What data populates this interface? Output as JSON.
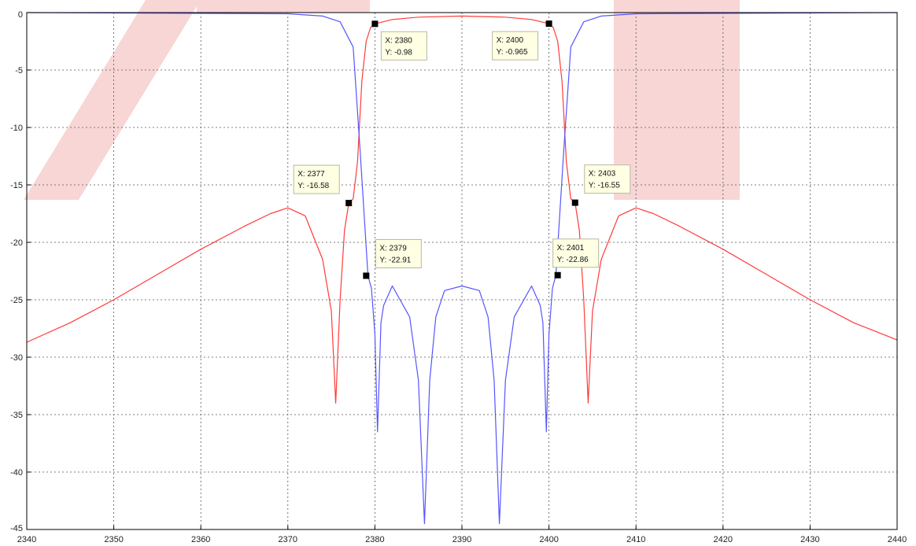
{
  "chart_data": {
    "type": "line",
    "title": "",
    "xlabel": "",
    "ylabel": "",
    "xlim": [
      2340,
      2440
    ],
    "ylim": [
      -45,
      0
    ],
    "grid": true,
    "grid_style": "dotted",
    "x_ticks": [
      2340,
      2350,
      2360,
      2370,
      2380,
      2390,
      2400,
      2410,
      2420,
      2430,
      2440
    ],
    "x_tick_labels": [
      "2340",
      "2350",
      "2360",
      "2370",
      "2380",
      "2390",
      "2400",
      "2410",
      "2420",
      "2430",
      "2440"
    ],
    "y_ticks": [
      0,
      -5,
      -10,
      -15,
      -20,
      -25,
      -30,
      -35,
      -40,
      -45
    ],
    "y_tick_labels": [
      "0",
      "-5",
      "-10",
      "-15",
      "-20",
      "-25",
      "-30",
      "-35",
      "-40",
      "-45"
    ],
    "series": [
      {
        "color": "#ff3b3b",
        "x": [
          2340,
          2345,
          2350,
          2355,
          2360,
          2365,
          2368,
          2370,
          2372,
          2374,
          2375.0,
          2375.5,
          2376.0,
          2376.5,
          2377,
          2377.5,
          2378.0,
          2378.5,
          2379.0,
          2379.5,
          2380,
          2382,
          2385,
          2390,
          2395,
          2398,
          2400,
          2400.5,
          2401.0,
          2401.5,
          2402.0,
          2402.5,
          2403,
          2403.5,
          2404.0,
          2404.5,
          2405.0,
          2406,
          2408,
          2410,
          2412,
          2415,
          2420,
          2425,
          2430,
          2435,
          2440
        ],
        "y": [
          -28.7,
          -27.0,
          -25.0,
          -22.8,
          -20.6,
          -18.6,
          -17.5,
          -17.0,
          -17.7,
          -21.5,
          -26.0,
          -34.0,
          -25.0,
          -19.0,
          -16.58,
          -16.2,
          -13.0,
          -6.0,
          -2.5,
          -1.3,
          -0.98,
          -0.6,
          -0.4,
          -0.3,
          -0.4,
          -0.6,
          -0.965,
          -1.3,
          -2.5,
          -6.0,
          -13.0,
          -16.2,
          -16.55,
          -19.0,
          -25.0,
          -34.0,
          -26.0,
          -21.5,
          -17.7,
          -17.0,
          -17.5,
          -18.6,
          -20.6,
          -22.8,
          -25.0,
          -27.0,
          -28.5
        ]
      },
      {
        "color": "#5555ff",
        "x": [
          2340,
          2370,
          2374,
          2376,
          2377.5,
          2378.3,
          2378.8,
          2379.2,
          2379.6,
          2380.0,
          2380.3,
          2380.7,
          2381,
          2382,
          2384,
          2385,
          2385.7,
          2386.3,
          2387,
          2388,
          2390,
          2392,
          2393,
          2393.7,
          2394.3,
          2395,
          2396,
          2398,
          2399,
          2399.3,
          2399.7,
          2400.0,
          2400.4,
          2400.8,
          2401.2,
          2401.7,
          2402.5,
          2404,
          2406,
          2410,
          2440
        ],
        "y": [
          0,
          -0.1,
          -0.3,
          -0.8,
          -3.0,
          -12.0,
          -18.0,
          -22.91,
          -24.0,
          -28.0,
          -36.5,
          -27.0,
          -25.5,
          -23.8,
          -26.5,
          -32.0,
          -44.5,
          -32.0,
          -26.5,
          -24.2,
          -23.8,
          -24.2,
          -26.5,
          -32.0,
          -44.5,
          -32.0,
          -26.5,
          -23.8,
          -25.5,
          -27.0,
          -36.5,
          -28.0,
          -24.0,
          -22.86,
          -18.0,
          -12.0,
          -3.0,
          -0.8,
          -0.3,
          -0.1,
          0
        ]
      }
    ],
    "markers": [
      {
        "x": 2380,
        "y": -0.98,
        "label_x": "X: 2380",
        "label_y": "Y: -0.98"
      },
      {
        "x": 2400,
        "y": -0.965,
        "label_x": "X: 2400",
        "label_y": "Y: -0.965"
      },
      {
        "x": 2377,
        "y": -16.58,
        "label_x": "X: 2377",
        "label_y": "Y: -16.58"
      },
      {
        "x": 2403,
        "y": -16.55,
        "label_x": "X: 2403",
        "label_y": "Y: -16.55"
      },
      {
        "x": 2379,
        "y": -22.91,
        "label_x": "X: 2379",
        "label_y": "Y: -22.91"
      },
      {
        "x": 2401,
        "y": -22.86,
        "label_x": "X: 2401",
        "label_y": "Y: -22.86"
      }
    ],
    "colors": {
      "grid": "#555555",
      "axes": "#000000",
      "watermark": "#f8d6d6",
      "annotation_bg": "#ffffe4",
      "annotation_border": "#b8b8a0"
    }
  }
}
